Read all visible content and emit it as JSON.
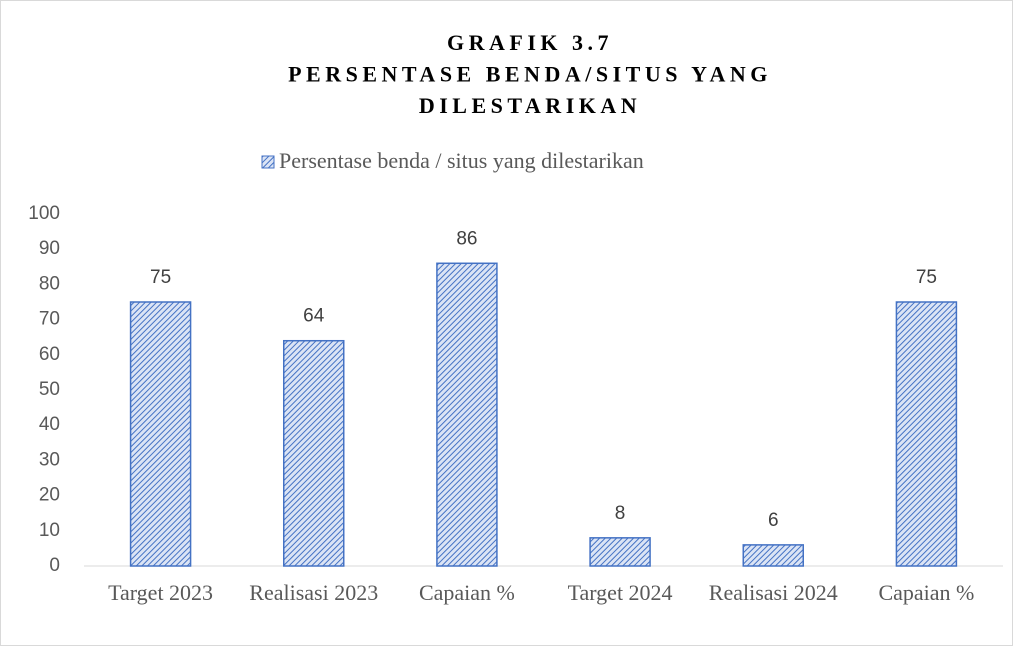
{
  "chart_data": {
    "type": "bar",
    "title": [
      "GRAFIK 3.7",
      "PERSENTASE BENDA/SITUS YANG",
      "DILESTARIKAN"
    ],
    "categories": [
      "Target 2023",
      "Realisasi 2023",
      "Capaian %",
      "Target 2024",
      "Realisasi 2024",
      "Capaian %"
    ],
    "series": [
      {
        "name": "Persentase benda / situs yang dilestarikan",
        "color": "#4472c4",
        "values": [
          75,
          64,
          86,
          8,
          6,
          75
        ]
      }
    ],
    "ylim": [
      0,
      100
    ],
    "yticks": [
      0,
      10,
      20,
      30,
      40,
      50,
      60,
      70,
      80,
      90,
      100
    ],
    "legend": "top",
    "grid": false
  }
}
